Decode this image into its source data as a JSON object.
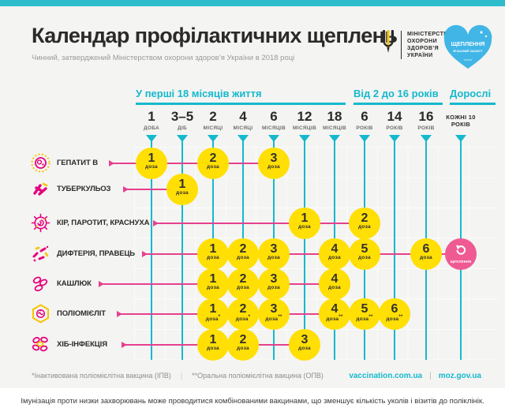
{
  "header": {
    "title": "Календар профілактичних щеплень",
    "subtitle": "Чинний, затверджений Міністерством охорони здоров’я України в 2018 році"
  },
  "logos": {
    "ministry": {
      "icon": "trident-icon",
      "lines": [
        "МІНІСТЕРСТВО",
        "ОХОРОНИ",
        "ЗДОРОВ’Я",
        "УКРАЇНИ"
      ]
    },
    "campaign_heart": {
      "icon": "heart-icon",
      "title": "ЩЕПЛЕННЯ",
      "subtitle": "ВЧАСНИЙ ЗАХИСТ",
      "footer": "unicef"
    }
  },
  "age_groups": [
    {
      "label": "У перші 18 місяців життя"
    },
    {
      "label": "Від 2 до 16 років"
    },
    {
      "label": "Дорослі"
    }
  ],
  "columns": [
    {
      "value": "1",
      "unit": "ДОБА"
    },
    {
      "value": "3–5",
      "unit": "ДІБ"
    },
    {
      "value": "2",
      "unit": "МІСЯЦІ"
    },
    {
      "value": "4",
      "unit": "МІСЯЦІ"
    },
    {
      "value": "6",
      "unit": "МІСЯЦІВ"
    },
    {
      "value": "12",
      "unit": "МІСЯЦІВ"
    },
    {
      "value": "18",
      "unit": "МІСЯЦІВ"
    },
    {
      "value": "6",
      "unit": "РОКІВ"
    },
    {
      "value": "14",
      "unit": "РОКІВ"
    },
    {
      "value": "16",
      "unit": "РОКІВ"
    },
    {
      "value": "",
      "unit": "КОЖНІ 10 РОКІВ"
    }
  ],
  "dose_word": "доза",
  "rows": [
    {
      "label": "ГЕПАТИТ В",
      "icon": "hepatitis-b-virus-icon",
      "doses": [
        {
          "col": 0,
          "n": "1"
        },
        {
          "col": 2,
          "n": "2"
        },
        {
          "col": 4,
          "n": "3"
        }
      ]
    },
    {
      "label": "ТУБЕРКУЛЬОЗ",
      "icon": "tuberculosis-bacteria-icon",
      "doses": [
        {
          "col": 1,
          "n": "1"
        }
      ]
    },
    {
      "label": "КІР, ПАРОТИТ, КРАСНУХА",
      "icon": "measles-virus-icon",
      "doses": [
        {
          "col": 5,
          "n": "1"
        },
        {
          "col": 7,
          "n": "2"
        }
      ]
    },
    {
      "label": "ДИФТЕРІЯ, ПРАВЕЦЬ",
      "icon": "diphtheria-bacteria-icon",
      "doses": [
        {
          "col": 2,
          "n": "1"
        },
        {
          "col": 3,
          "n": "2"
        },
        {
          "col": 4,
          "n": "3"
        },
        {
          "col": 6,
          "n": "4"
        },
        {
          "col": 7,
          "n": "5"
        },
        {
          "col": 9,
          "n": "6"
        },
        {
          "col": 10,
          "booster": true
        }
      ]
    },
    {
      "label": "КАШЛЮК",
      "icon": "pertussis-bacteria-icon",
      "doses": [
        {
          "col": 2,
          "n": "1"
        },
        {
          "col": 3,
          "n": "2"
        },
        {
          "col": 4,
          "n": "3"
        },
        {
          "col": 6,
          "n": "4"
        }
      ]
    },
    {
      "label": "ПОЛІОМІЄЛІТ",
      "icon": "polio-virus-icon",
      "doses": [
        {
          "col": 2,
          "n": "1",
          "mark": "*"
        },
        {
          "col": 3,
          "n": "2",
          "mark": "*"
        },
        {
          "col": 4,
          "n": "3",
          "mark": "**"
        },
        {
          "col": 6,
          "n": "4",
          "mark": "**"
        },
        {
          "col": 7,
          "n": "5",
          "mark": "**"
        },
        {
          "col": 8,
          "n": "6",
          "mark": "**"
        }
      ]
    },
    {
      "label": "ХІБ-ІНФЕКЦІЯ",
      "icon": "hib-bacteria-icon",
      "doses": [
        {
          "col": 2,
          "n": "1"
        },
        {
          "col": 3,
          "n": "2"
        },
        {
          "col": 5,
          "n": "3"
        }
      ]
    }
  ],
  "booster": {
    "label": "щеплення",
    "icon": "repeat-icon"
  },
  "footnotes": {
    "left": "*Інактивована поліомієлітна вакцина (ІПВ)",
    "right": "**Оральна поліомієлітна вакцина (ОПВ)"
  },
  "links": [
    {
      "label": "vaccination.com.ua"
    },
    {
      "label": "moz.gov.ua"
    }
  ],
  "bottom_note": "Імунізація проти низки захворювань може проводитися комбінованими вакцинами, що зменшує кількість уколів і візитів до поліклінік.",
  "colors": {
    "teal": "#14b9cd",
    "magenta_line": "#e6408f",
    "magenta_icon": "#e6007e",
    "yellow": "#ffdf04",
    "booster_pink": "#ef5a93",
    "heart_blue": "#41b6e6",
    "dark": "#2b2a29"
  }
}
